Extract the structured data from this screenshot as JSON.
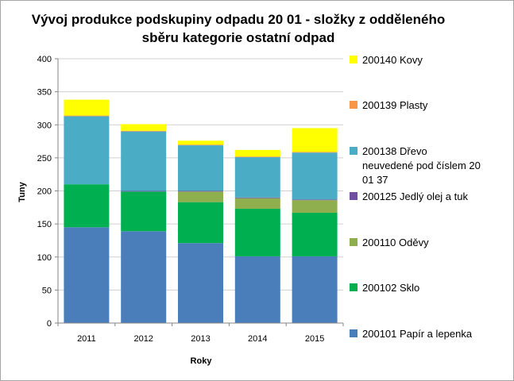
{
  "chart_data": {
    "type": "bar",
    "stacked": true,
    "title_lines": [
      "Vývoj produkce podskupiny odpadu 20 01 - složky z odděleného",
      "sběru kategorie ostatní odpad"
    ],
    "xlabel": "Roky",
    "ylabel": "Tuny",
    "categories": [
      "2011",
      "2012",
      "2013",
      "2014",
      "2015"
    ],
    "ylim": [
      0,
      400
    ],
    "yticks": [
      "0",
      "50",
      "100",
      "150",
      "200",
      "250",
      "300",
      "350",
      "400"
    ],
    "grid": "horizontal",
    "legend_position": "right",
    "series": [
      {
        "name": "200101 Papír a lepenka",
        "color": "#4a7ebb",
        "values": [
          145,
          139,
          121,
          101,
          101
        ]
      },
      {
        "name": "200102 Sklo",
        "color": "#00b050",
        "values": [
          65,
          60,
          62,
          72,
          66
        ]
      },
      {
        "name": "200110 Oděvy",
        "color": "#8faf4f",
        "values": [
          0,
          0,
          16,
          16,
          19
        ]
      },
      {
        "name": "200125 Jedlý olej a tuk",
        "color": "#7150a0",
        "values": [
          0,
          1,
          1,
          1,
          1
        ]
      },
      {
        "name": "200138 Dřevo neuvedené pod číslem 20 01 37",
        "color": "#4bacc6",
        "values": [
          103,
          90,
          69,
          61,
          71
        ]
      },
      {
        "name": "200139 Plasty",
        "color": "#f79646",
        "values": [
          1,
          1,
          1,
          1,
          1
        ]
      },
      {
        "name": "200140 Kovy",
        "color": "#ffff00",
        "values": [
          24,
          10,
          6,
          10,
          36
        ]
      }
    ],
    "legend_lines": [
      [
        "200140 Kovy"
      ],
      [
        "200139 Plasty"
      ],
      [
        "200138 Dřevo",
        "neuvedené pod číslem 20",
        "01 37"
      ],
      [
        "200125 Jedlý olej a tuk"
      ],
      [
        "200110 Oděvy"
      ],
      [
        "200102 Sklo"
      ],
      [
        "200101 Papír a lepenka"
      ]
    ],
    "legend_order": [
      6,
      5,
      4,
      3,
      2,
      1,
      0
    ]
  }
}
